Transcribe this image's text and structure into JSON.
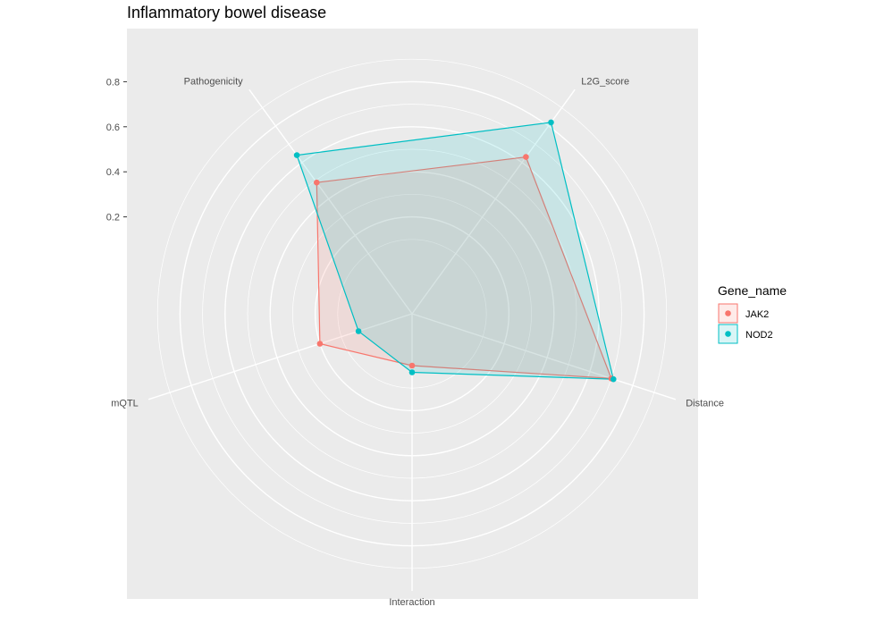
{
  "chart_data": {
    "type": "radar",
    "title": "Inflammatory bowel disease",
    "axes": [
      "L2G_score",
      "Distance",
      "Interaction",
      "mQTL",
      "Pathogenicity"
    ],
    "radial_ticks": [
      0.2,
      0.4,
      0.6,
      0.8
    ],
    "rlim": [
      -0.23,
      1.0
    ],
    "grid": true,
    "legend": {
      "title": "Gene_name",
      "position": "right"
    },
    "series": [
      {
        "name": "JAK2",
        "color": "#F8766D",
        "values": [
          0.63,
          0.7,
          0.0,
          0.2,
          0.49
        ]
      },
      {
        "name": "NOD2",
        "color": "#00BFC4",
        "values": [
          0.82,
          0.71,
          0.03,
          0.02,
          0.64
        ]
      }
    ]
  }
}
